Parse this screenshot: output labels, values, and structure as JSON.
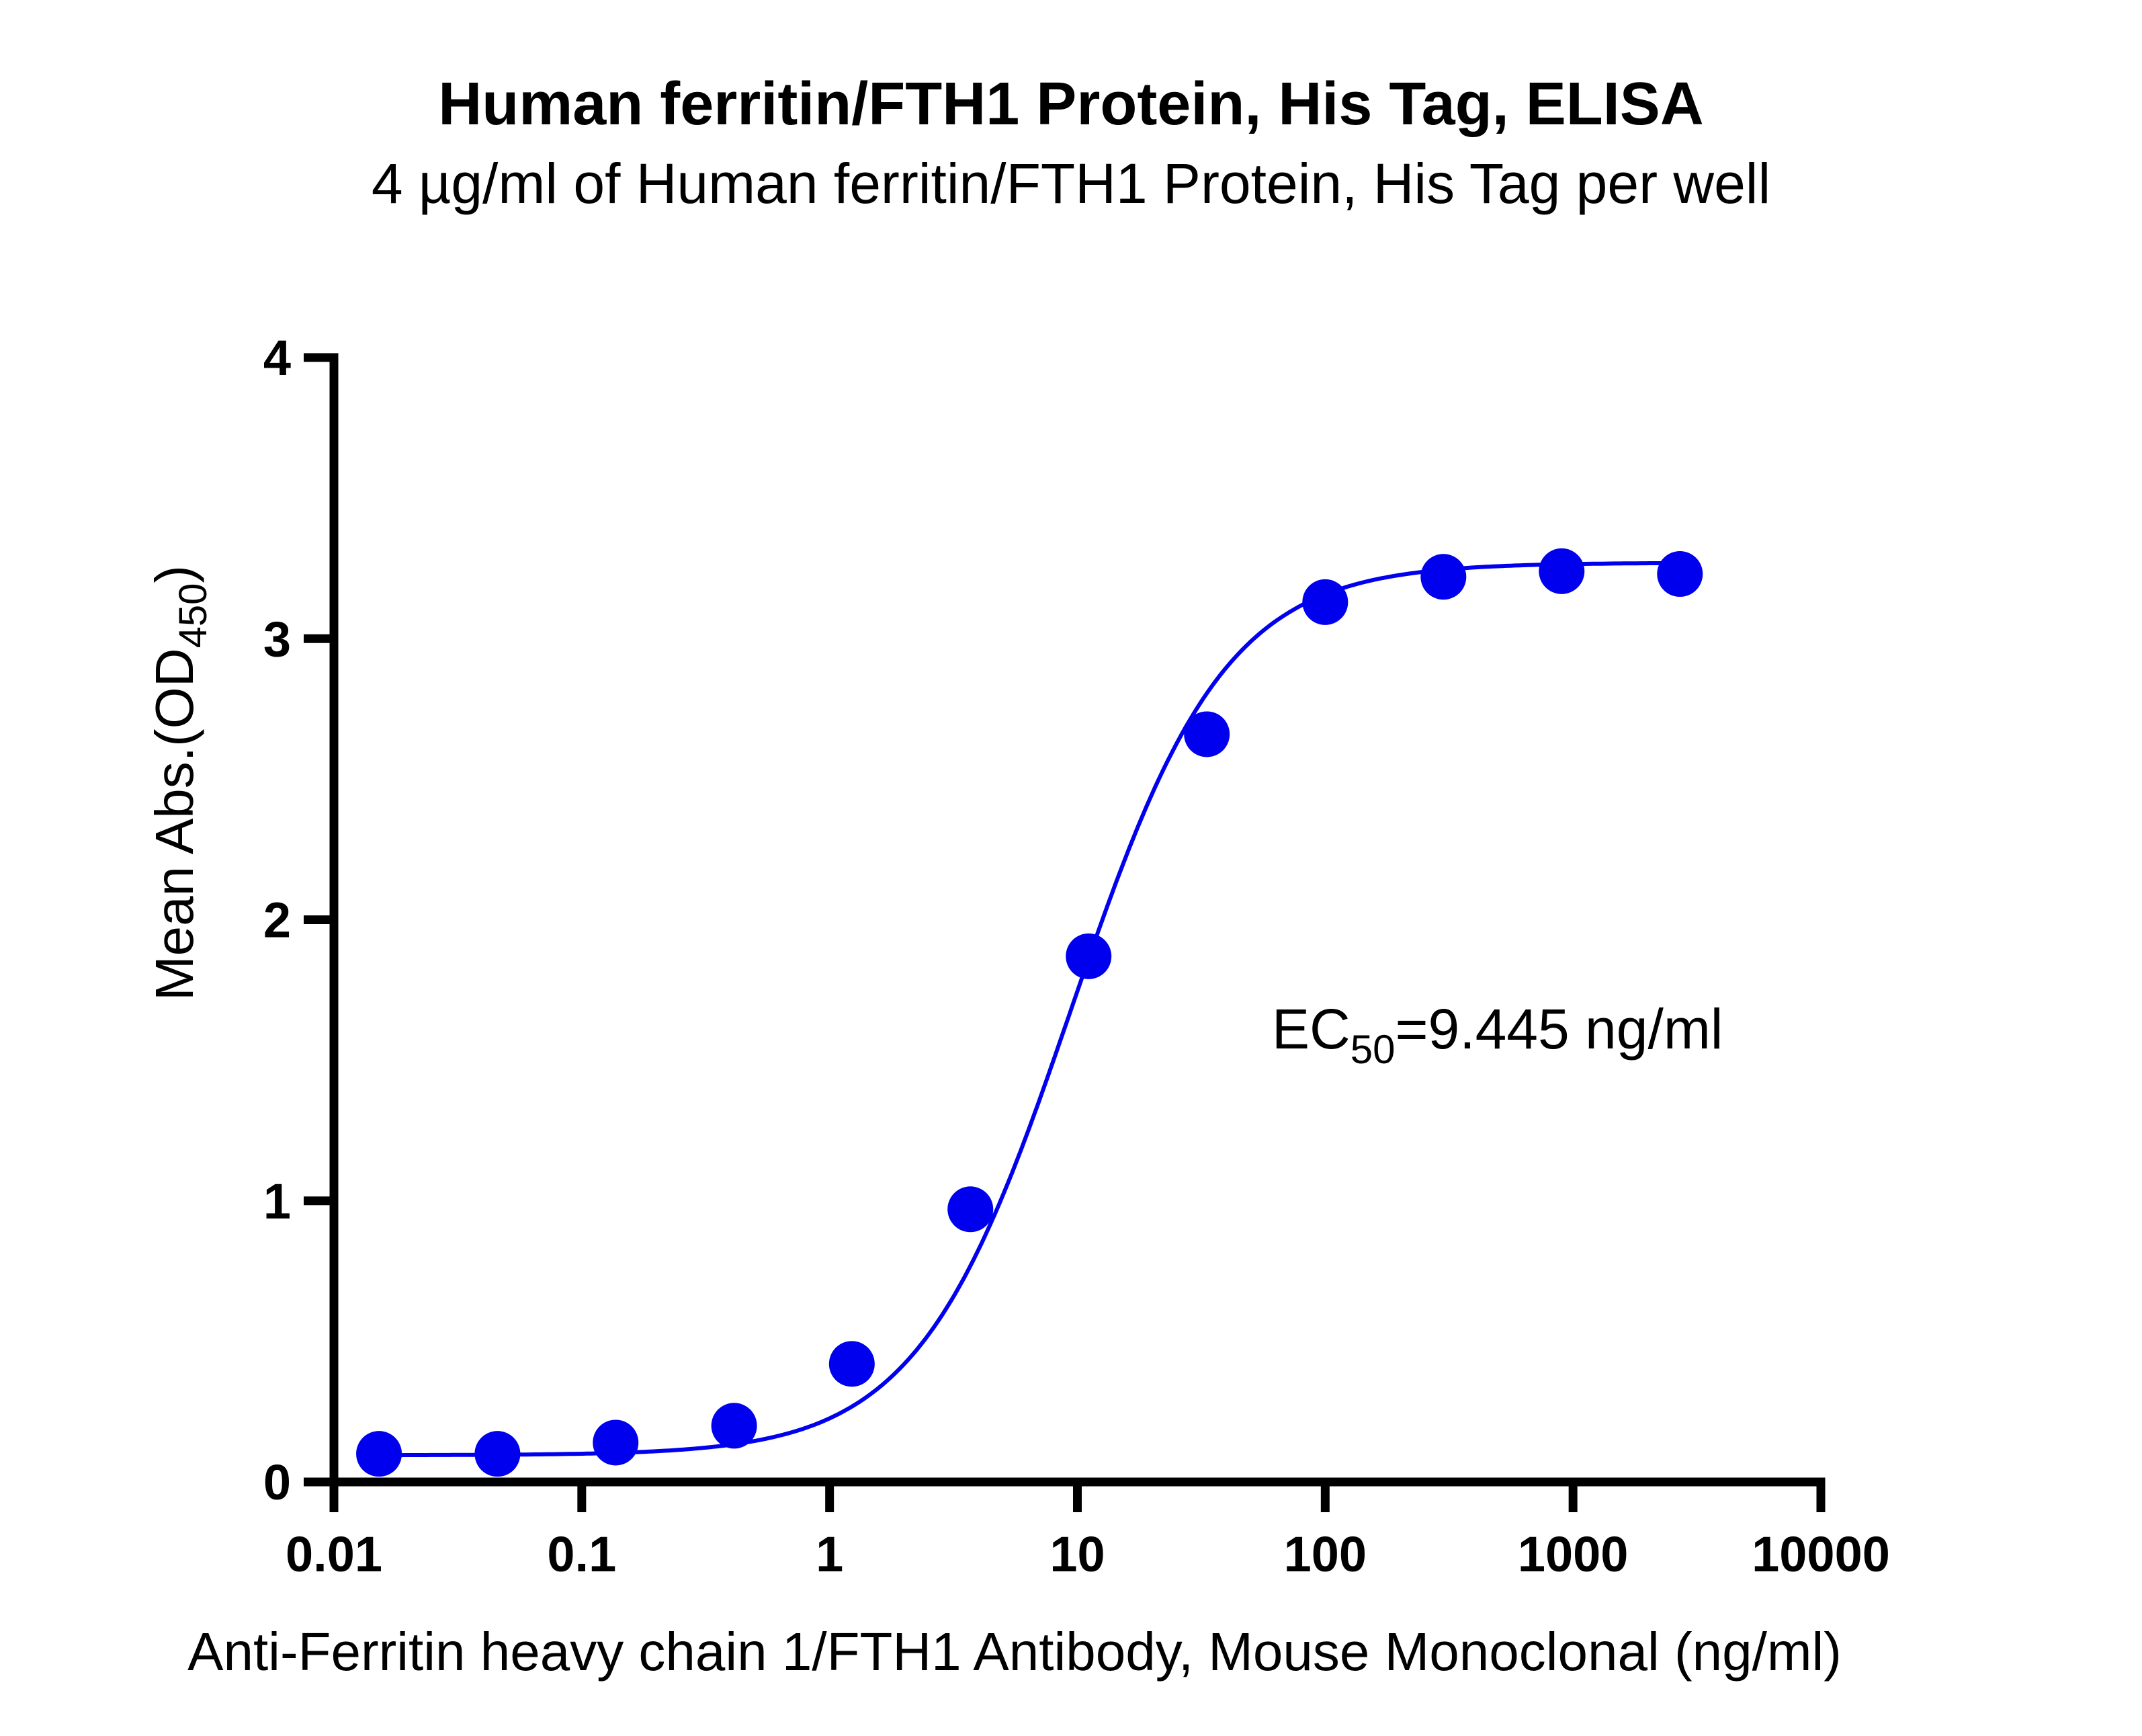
{
  "chart_data": {
    "type": "scatter",
    "title": "Human ferritin/FTH1 Protein, His Tag, ELISA",
    "subtitle": "4 µg/ml of Human ferritin/FTH1 Protein, His Tag per well",
    "xlabel": "Anti-Ferritin heavy chain 1/FTH1 Antibody, Mouse Monoclonal (ng/ml)",
    "ylabel_main": "Mean Abs.(OD",
    "ylabel_sub": "450",
    "ylabel_close": ")",
    "x_scale": "log",
    "xlim": [
      0.01,
      10000
    ],
    "ylim": [
      0,
      4
    ],
    "x_ticks": [
      0.01,
      0.1,
      1,
      10,
      100,
      1000,
      10000
    ],
    "x_tick_labels": [
      "0.01",
      "0.1",
      "1",
      "10",
      "100",
      "1000",
      "10000"
    ],
    "y_ticks": [
      0,
      1,
      2,
      3,
      4
    ],
    "y_tick_labels": [
      "0",
      "1",
      "2",
      "3",
      "4"
    ],
    "grid": false,
    "series": [
      {
        "color": "#0000ee",
        "marker": "circle",
        "fit": "4PL",
        "points": [
          {
            "x": 0.0152,
            "y": 0.1
          },
          {
            "x": 0.0457,
            "y": 0.1
          },
          {
            "x": 0.137,
            "y": 0.14
          },
          {
            "x": 0.412,
            "y": 0.2
          },
          {
            "x": 1.23,
            "y": 0.42
          },
          {
            "x": 3.7,
            "y": 0.97
          },
          {
            "x": 11.1,
            "y": 1.87
          },
          {
            "x": 33.3,
            "y": 2.66
          },
          {
            "x": 100,
            "y": 3.13
          },
          {
            "x": 300,
            "y": 3.22
          },
          {
            "x": 900,
            "y": 3.24
          },
          {
            "x": 2700,
            "y": 3.23
          }
        ]
      }
    ],
    "annotation": {
      "main": "EC",
      "sub": "50",
      "rest": "=9.445 ng/ml"
    }
  }
}
